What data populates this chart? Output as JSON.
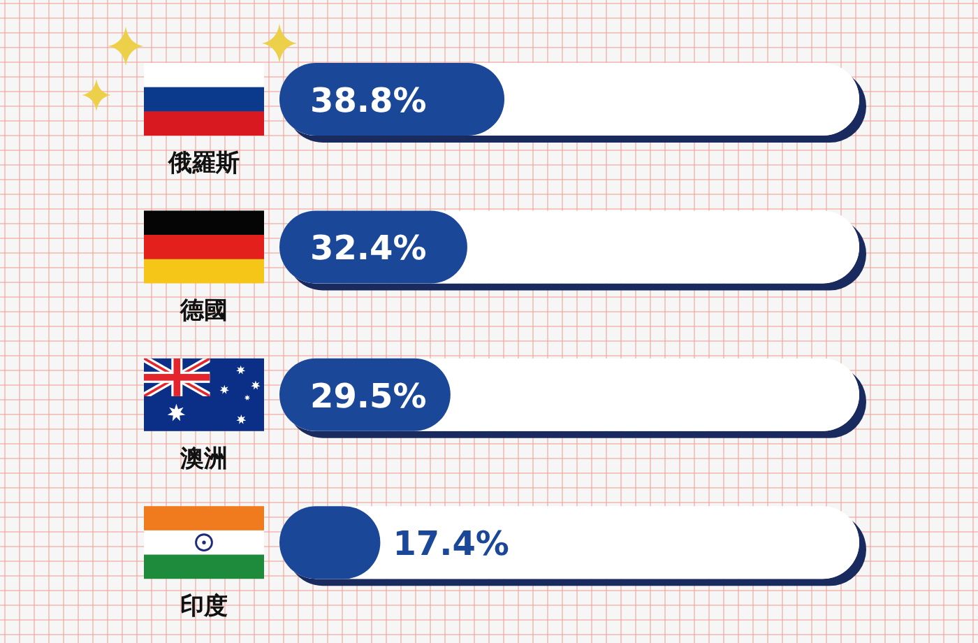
{
  "chart_data": {
    "type": "bar",
    "orientation": "horizontal",
    "categories": [
      "俄羅斯",
      "德國",
      "澳洲",
      "印度"
    ],
    "values": [
      38.8,
      32.4,
      29.5,
      17.4
    ],
    "value_labels": [
      "38.8%",
      "32.4%",
      "29.5%",
      "17.4%"
    ],
    "color": "#1b4799",
    "xlim": [
      0,
      100
    ],
    "tick_labels": "y"
  }
}
